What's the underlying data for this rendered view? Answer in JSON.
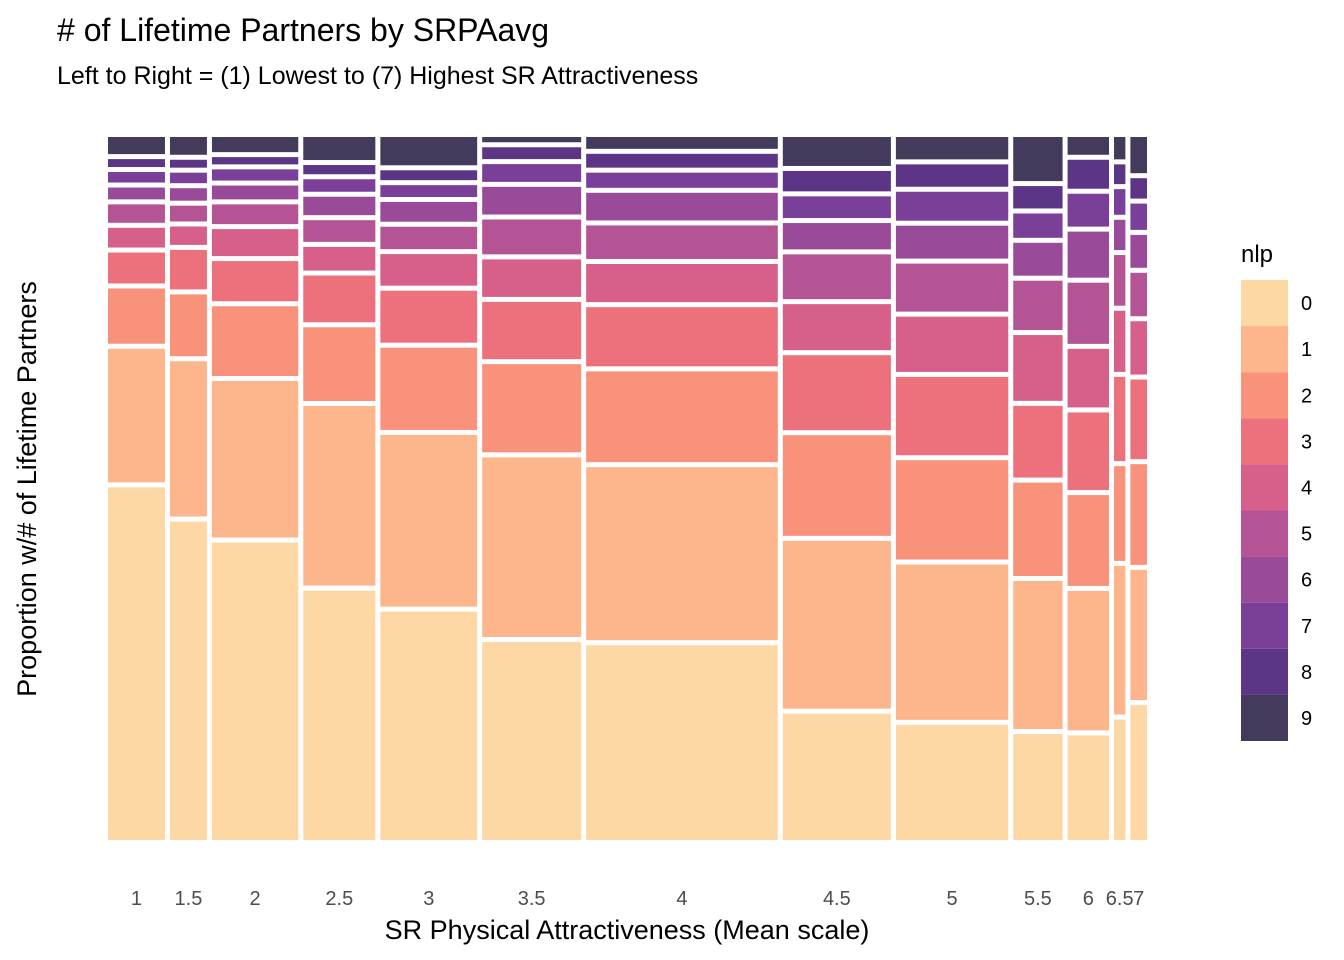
{
  "chart_data": {
    "type": "mosaic",
    "title": "# of Lifetime Partners by SRPAavg",
    "subtitle": "Left to Right = (1) Lowest to (7) Highest SR Attractiveness",
    "xlabel": "SR Physical Attractiveness (Mean scale)",
    "ylabel": "Proportion w/# of Lifetime Partners",
    "legend_title": "nlp",
    "legend_position": "right",
    "grid": false,
    "ylim": [
      0,
      1
    ],
    "nlp_levels": [
      "0",
      "1",
      "2",
      "3",
      "4",
      "5",
      "6",
      "7",
      "8",
      "9"
    ],
    "colors": [
      "#fdd8a5",
      "#fdb68b",
      "#f9927a",
      "#ed717d",
      "#d6608a",
      "#b55495",
      "#994b9a",
      "#7a3f98",
      "#5c3587",
      "#443a5c"
    ],
    "categories": [
      "1",
      "1.5",
      "2",
      "2.5",
      "3",
      "3.5",
      "4",
      "4.5",
      "5",
      "5.5",
      "6",
      "6.5",
      "7"
    ],
    "column_widths": [
      0.0576,
      0.0374,
      0.0873,
      0.0729,
      0.0979,
      0.1001,
      0.1938,
      0.1093,
      0.1136,
      0.0499,
      0.0419,
      0.0115,
      0.0168
    ],
    "proportions": [
      [
        0.536,
        0.203,
        0.084,
        0.047,
        0.03,
        0.028,
        0.018,
        0.016,
        0.012,
        0.026
      ],
      [
        0.484,
        0.236,
        0.094,
        0.06,
        0.028,
        0.024,
        0.019,
        0.016,
        0.012,
        0.027
      ],
      [
        0.452,
        0.238,
        0.106,
        0.061,
        0.041,
        0.03,
        0.021,
        0.017,
        0.011,
        0.023
      ],
      [
        0.379,
        0.273,
        0.112,
        0.071,
        0.036,
        0.033,
        0.028,
        0.019,
        0.014,
        0.035
      ],
      [
        0.347,
        0.261,
        0.125,
        0.079,
        0.048,
        0.034,
        0.03,
        0.018,
        0.015,
        0.043
      ],
      [
        0.301,
        0.273,
        0.134,
        0.087,
        0.057,
        0.053,
        0.042,
        0.027,
        0.018,
        0.008
      ],
      [
        0.296,
        0.263,
        0.138,
        0.09,
        0.058,
        0.051,
        0.042,
        0.023,
        0.021,
        0.018
      ],
      [
        0.192,
        0.255,
        0.153,
        0.114,
        0.07,
        0.068,
        0.04,
        0.033,
        0.031,
        0.044
      ],
      [
        0.175,
        0.236,
        0.151,
        0.119,
        0.084,
        0.073,
        0.05,
        0.044,
        0.034,
        0.034
      ],
      [
        0.161,
        0.225,
        0.142,
        0.109,
        0.1,
        0.075,
        0.05,
        0.037,
        0.034,
        0.067
      ],
      [
        0.159,
        0.212,
        0.138,
        0.118,
        0.089,
        0.093,
        0.07,
        0.05,
        0.044,
        0.027
      ],
      [
        0.183,
        0.226,
        0.144,
        0.128,
        0.093,
        0.077,
        0.046,
        0.039,
        0.03,
        0.034
      ],
      [
        0.205,
        0.198,
        0.153,
        0.121,
        0.081,
        0.066,
        0.05,
        0.04,
        0.031,
        0.055
      ]
    ]
  }
}
